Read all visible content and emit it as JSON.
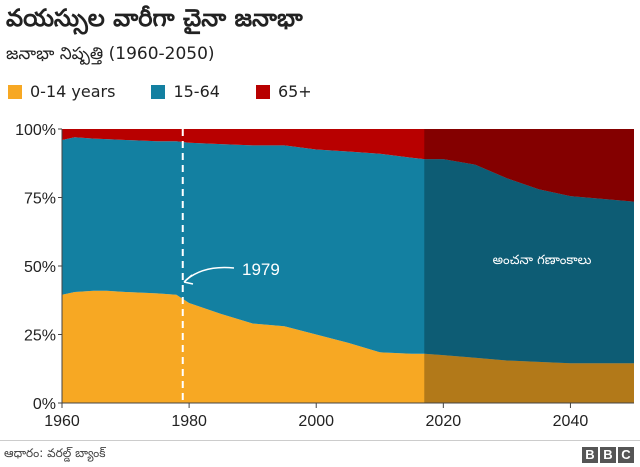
{
  "title": "వయస్సుల వారీగా చైనా జనాభా",
  "subtitle": "జనాభా నిష్పత్తి (1960-2050)",
  "source": "ఆధారం: వరల్డ్ బ్యాంక్",
  "brand": [
    "B",
    "B",
    "C"
  ],
  "colors": {
    "age_0_14": "#f7a823",
    "age_15_64": "#1380a1",
    "age_65_plus": "#b80000",
    "projection_shade": "#000000",
    "marker": "#ffffff"
  },
  "chart_data": {
    "type": "area",
    "stacked": true,
    "xlim": [
      1960,
      2050
    ],
    "ylim": [
      0,
      100
    ],
    "yticks": [
      0,
      25,
      50,
      75,
      100
    ],
    "ytick_labels": [
      "0%",
      "25%",
      "50%",
      "75%",
      "100%"
    ],
    "xticks": [
      1960,
      1980,
      2000,
      2020,
      2040
    ],
    "x": [
      1960,
      1962,
      1965,
      1967,
      1970,
      1975,
      1978,
      1980,
      1985,
      1990,
      1995,
      2000,
      2005,
      2010,
      2015,
      2017,
      2020,
      2025,
      2030,
      2035,
      2040,
      2045,
      2050
    ],
    "series": [
      {
        "name": "0-14 years",
        "values": [
          39.5,
          40.5,
          41,
          41,
          40.5,
          40,
          39.5,
          36.5,
          32.5,
          29,
          28,
          25,
          22,
          18.5,
          18,
          18,
          17.5,
          16.5,
          15.5,
          15,
          14.5,
          14.5,
          14.5
        ]
      },
      {
        "name": "15-64",
        "values": [
          56.5,
          56.5,
          55.5,
          55.3,
          55.5,
          55.5,
          56,
          58.5,
          62,
          65,
          66,
          67.5,
          69.8,
          72.5,
          71.5,
          71,
          71.5,
          70.5,
          66.5,
          63,
          61,
          60,
          59
        ]
      },
      {
        "name": "65+",
        "values": [
          4,
          3,
          3.5,
          3.7,
          4,
          4.5,
          4.5,
          5,
          5.5,
          6,
          6,
          7.5,
          8.2,
          9,
          10.5,
          11,
          11,
          13,
          18,
          22,
          24.5,
          25.5,
          26.5
        ]
      }
    ],
    "projection_start": 2017,
    "projection_label": "అంచనా గణాంకాలు",
    "marker": {
      "x": 1979,
      "label": "1979"
    }
  }
}
